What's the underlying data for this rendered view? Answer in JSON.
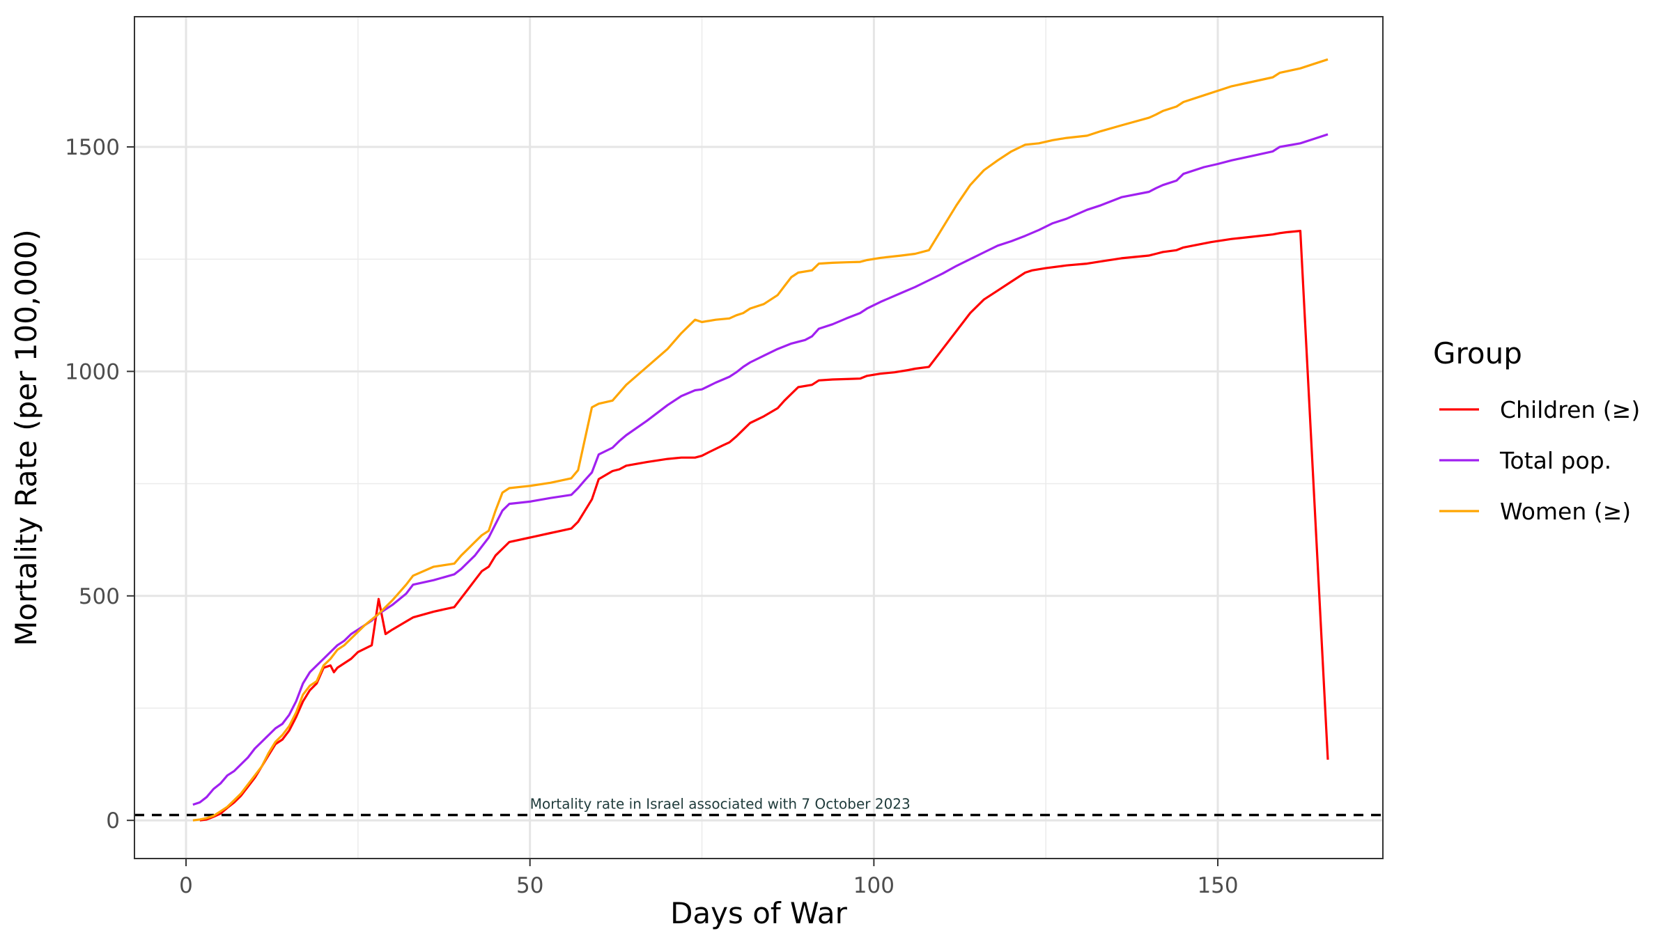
{
  "chart_data": {
    "type": "line",
    "title": "",
    "xlabel": "Days of War",
    "ylabel": "Mortality Rate (per 100,000)",
    "xlim": [
      -7.5,
      174.0
    ],
    "ylim": [
      -85,
      1790
    ],
    "x_ticks": [
      0,
      50,
      100,
      150
    ],
    "y_ticks": [
      0,
      500,
      1000,
      1500
    ],
    "x_minor": [
      25,
      75,
      125
    ],
    "y_minor": [
      250,
      750,
      1250
    ],
    "grid": true,
    "legend": {
      "title": "Group",
      "position": "right",
      "entries": [
        "Children (≥)",
        "Total pop.",
        "Women (≥)"
      ]
    },
    "reference_line": {
      "y": 12,
      "style": "dashed",
      "color": "#000000",
      "label": "Mortality rate in Israel associated with 7 October 2023",
      "label_x": 50
    },
    "series": [
      {
        "name": "Children (≥)",
        "color": "#ff0000",
        "points": [
          [
            2,
            0
          ],
          [
            3,
            2
          ],
          [
            4,
            8
          ],
          [
            5,
            15
          ],
          [
            6,
            28
          ],
          [
            7,
            40
          ],
          [
            8,
            55
          ],
          [
            9,
            75
          ],
          [
            10,
            95
          ],
          [
            11,
            120
          ],
          [
            12,
            145
          ],
          [
            13,
            170
          ],
          [
            14,
            180
          ],
          [
            15,
            200
          ],
          [
            16,
            230
          ],
          [
            17,
            265
          ],
          [
            18,
            290
          ],
          [
            19,
            305
          ],
          [
            20,
            340
          ],
          [
            21,
            345
          ],
          [
            21.5,
            330
          ],
          [
            22,
            340
          ],
          [
            24,
            360
          ],
          [
            25,
            375
          ],
          [
            27,
            390
          ],
          [
            28,
            493
          ],
          [
            29,
            415
          ],
          [
            30,
            425
          ],
          [
            33,
            452
          ],
          [
            36,
            465
          ],
          [
            39,
            475
          ],
          [
            40,
            495
          ],
          [
            41,
            515
          ],
          [
            42,
            535
          ],
          [
            43,
            555
          ],
          [
            44,
            565
          ],
          [
            45,
            590
          ],
          [
            46,
            605
          ],
          [
            47,
            620
          ],
          [
            50,
            630
          ],
          [
            53,
            640
          ],
          [
            56,
            650
          ],
          [
            57,
            665
          ],
          [
            58,
            690
          ],
          [
            59,
            715
          ],
          [
            60,
            760
          ],
          [
            62,
            778
          ],
          [
            63,
            782
          ],
          [
            64,
            790
          ],
          [
            67,
            798
          ],
          [
            70,
            805
          ],
          [
            72,
            808
          ],
          [
            74,
            808
          ],
          [
            75,
            812
          ],
          [
            76,
            820
          ],
          [
            78,
            835
          ],
          [
            79,
            842
          ],
          [
            80,
            855
          ],
          [
            81,
            870
          ],
          [
            82,
            885
          ],
          [
            84,
            900
          ],
          [
            86,
            918
          ],
          [
            87,
            935
          ],
          [
            88,
            950
          ],
          [
            89,
            965
          ],
          [
            91,
            970
          ],
          [
            92,
            980
          ],
          [
            94,
            982
          ],
          [
            96,
            983
          ],
          [
            98,
            984
          ],
          [
            99,
            990
          ],
          [
            101,
            995
          ],
          [
            103,
            998
          ],
          [
            105,
            1003
          ],
          [
            106,
            1006
          ],
          [
            108,
            1010
          ],
          [
            110,
            1050
          ],
          [
            112,
            1090
          ],
          [
            114,
            1130
          ],
          [
            116,
            1160
          ],
          [
            118,
            1180
          ],
          [
            120,
            1200
          ],
          [
            122,
            1220
          ],
          [
            123,
            1225
          ],
          [
            125,
            1230
          ],
          [
            128,
            1236
          ],
          [
            131,
            1240
          ],
          [
            133,
            1245
          ],
          [
            136,
            1252
          ],
          [
            140,
            1258
          ],
          [
            141,
            1262
          ],
          [
            142,
            1266
          ],
          [
            144,
            1270
          ],
          [
            145,
            1276
          ],
          [
            147,
            1282
          ],
          [
            149,
            1288
          ],
          [
            152,
            1295
          ],
          [
            155,
            1300
          ],
          [
            158,
            1305
          ],
          [
            159,
            1308
          ],
          [
            160,
            1310
          ],
          [
            162,
            1313
          ],
          [
            166,
            135
          ]
        ]
      },
      {
        "name": "Total pop.",
        "color": "#a020f0",
        "points": [
          [
            1,
            35
          ],
          [
            2,
            40
          ],
          [
            3,
            52
          ],
          [
            4,
            70
          ],
          [
            5,
            82
          ],
          [
            6,
            100
          ],
          [
            7,
            110
          ],
          [
            8,
            125
          ],
          [
            9,
            140
          ],
          [
            10,
            160
          ],
          [
            11,
            175
          ],
          [
            12,
            190
          ],
          [
            13,
            205
          ],
          [
            14,
            215
          ],
          [
            15,
            235
          ],
          [
            16,
            265
          ],
          [
            17,
            305
          ],
          [
            18,
            330
          ],
          [
            19,
            345
          ],
          [
            20,
            360
          ],
          [
            21,
            375
          ],
          [
            22,
            390
          ],
          [
            23,
            400
          ],
          [
            24,
            415
          ],
          [
            25,
            425
          ],
          [
            26,
            435
          ],
          [
            27,
            445
          ],
          [
            28,
            460
          ],
          [
            30,
            480
          ],
          [
            32,
            505
          ],
          [
            33,
            525
          ],
          [
            36,
            535
          ],
          [
            39,
            548
          ],
          [
            40,
            560
          ],
          [
            41,
            575
          ],
          [
            42,
            590
          ],
          [
            43,
            610
          ],
          [
            44,
            630
          ],
          [
            45,
            660
          ],
          [
            46,
            690
          ],
          [
            47,
            705
          ],
          [
            50,
            710
          ],
          [
            53,
            718
          ],
          [
            56,
            725
          ],
          [
            57,
            740
          ],
          [
            58,
            758
          ],
          [
            59,
            775
          ],
          [
            60,
            815
          ],
          [
            62,
            830
          ],
          [
            63,
            845
          ],
          [
            64,
            858
          ],
          [
            67,
            890
          ],
          [
            70,
            925
          ],
          [
            72,
            945
          ],
          [
            74,
            958
          ],
          [
            75,
            960
          ],
          [
            77,
            975
          ],
          [
            79,
            988
          ],
          [
            80,
            998
          ],
          [
            81,
            1010
          ],
          [
            82,
            1020
          ],
          [
            84,
            1035
          ],
          [
            86,
            1050
          ],
          [
            88,
            1062
          ],
          [
            90,
            1070
          ],
          [
            91,
            1078
          ],
          [
            92,
            1095
          ],
          [
            94,
            1105
          ],
          [
            96,
            1118
          ],
          [
            98,
            1130
          ],
          [
            99,
            1140
          ],
          [
            101,
            1155
          ],
          [
            104,
            1175
          ],
          [
            106,
            1188
          ],
          [
            108,
            1203
          ],
          [
            110,
            1218
          ],
          [
            112,
            1235
          ],
          [
            114,
            1250
          ],
          [
            116,
            1265
          ],
          [
            118,
            1280
          ],
          [
            120,
            1290
          ],
          [
            122,
            1302
          ],
          [
            124,
            1315
          ],
          [
            126,
            1330
          ],
          [
            128,
            1340
          ],
          [
            131,
            1360
          ],
          [
            133,
            1370
          ],
          [
            136,
            1388
          ],
          [
            140,
            1400
          ],
          [
            141,
            1408
          ],
          [
            142,
            1415
          ],
          [
            144,
            1425
          ],
          [
            145,
            1440
          ],
          [
            148,
            1455
          ],
          [
            150,
            1462
          ],
          [
            152,
            1470
          ],
          [
            155,
            1480
          ],
          [
            158,
            1490
          ],
          [
            159,
            1500
          ],
          [
            162,
            1508
          ],
          [
            164,
            1518
          ],
          [
            166,
            1528
          ]
        ]
      },
      {
        "name": "Women (≥)",
        "color": "#ffa500",
        "points": [
          [
            1,
            0
          ],
          [
            2,
            2
          ],
          [
            3,
            5
          ],
          [
            4,
            10
          ],
          [
            5,
            20
          ],
          [
            6,
            30
          ],
          [
            7,
            45
          ],
          [
            8,
            60
          ],
          [
            9,
            80
          ],
          [
            10,
            100
          ],
          [
            11,
            120
          ],
          [
            12,
            150
          ],
          [
            13,
            175
          ],
          [
            14,
            190
          ],
          [
            15,
            210
          ],
          [
            16,
            240
          ],
          [
            17,
            280
          ],
          [
            18,
            300
          ],
          [
            19,
            310
          ],
          [
            20,
            345
          ],
          [
            21,
            360
          ],
          [
            22,
            380
          ],
          [
            23,
            390
          ],
          [
            24,
            405
          ],
          [
            25,
            420
          ],
          [
            26,
            435
          ],
          [
            28,
            460
          ],
          [
            30,
            490
          ],
          [
            32,
            525
          ],
          [
            33,
            545
          ],
          [
            36,
            565
          ],
          [
            39,
            572
          ],
          [
            40,
            590
          ],
          [
            41,
            605
          ],
          [
            42,
            620
          ],
          [
            43,
            635
          ],
          [
            44,
            645
          ],
          [
            45,
            690
          ],
          [
            46,
            730
          ],
          [
            47,
            740
          ],
          [
            50,
            745
          ],
          [
            53,
            752
          ],
          [
            56,
            762
          ],
          [
            57,
            780
          ],
          [
            58,
            850
          ],
          [
            59,
            920
          ],
          [
            60,
            928
          ],
          [
            62,
            935
          ],
          [
            64,
            970
          ],
          [
            67,
            1010
          ],
          [
            70,
            1050
          ],
          [
            72,
            1085
          ],
          [
            74,
            1115
          ],
          [
            75,
            1110
          ],
          [
            77,
            1115
          ],
          [
            79,
            1118
          ],
          [
            80,
            1125
          ],
          [
            81,
            1130
          ],
          [
            82,
            1140
          ],
          [
            84,
            1150
          ],
          [
            86,
            1170
          ],
          [
            87,
            1190
          ],
          [
            88,
            1210
          ],
          [
            89,
            1220
          ],
          [
            91,
            1225
          ],
          [
            92,
            1240
          ],
          [
            94,
            1242
          ],
          [
            96,
            1243
          ],
          [
            98,
            1244
          ],
          [
            99,
            1248
          ],
          [
            101,
            1253
          ],
          [
            104,
            1258
          ],
          [
            106,
            1262
          ],
          [
            108,
            1270
          ],
          [
            110,
            1320
          ],
          [
            112,
            1370
          ],
          [
            114,
            1415
          ],
          [
            116,
            1448
          ],
          [
            118,
            1470
          ],
          [
            120,
            1490
          ],
          [
            122,
            1505
          ],
          [
            124,
            1508
          ],
          [
            126,
            1515
          ],
          [
            128,
            1520
          ],
          [
            131,
            1525
          ],
          [
            133,
            1535
          ],
          [
            136,
            1548
          ],
          [
            140,
            1565
          ],
          [
            141,
            1572
          ],
          [
            142,
            1580
          ],
          [
            144,
            1590
          ],
          [
            145,
            1600
          ],
          [
            148,
            1615
          ],
          [
            150,
            1625
          ],
          [
            152,
            1635
          ],
          [
            155,
            1645
          ],
          [
            158,
            1655
          ],
          [
            159,
            1665
          ],
          [
            162,
            1675
          ],
          [
            164,
            1685
          ],
          [
            166,
            1695
          ]
        ]
      }
    ]
  }
}
